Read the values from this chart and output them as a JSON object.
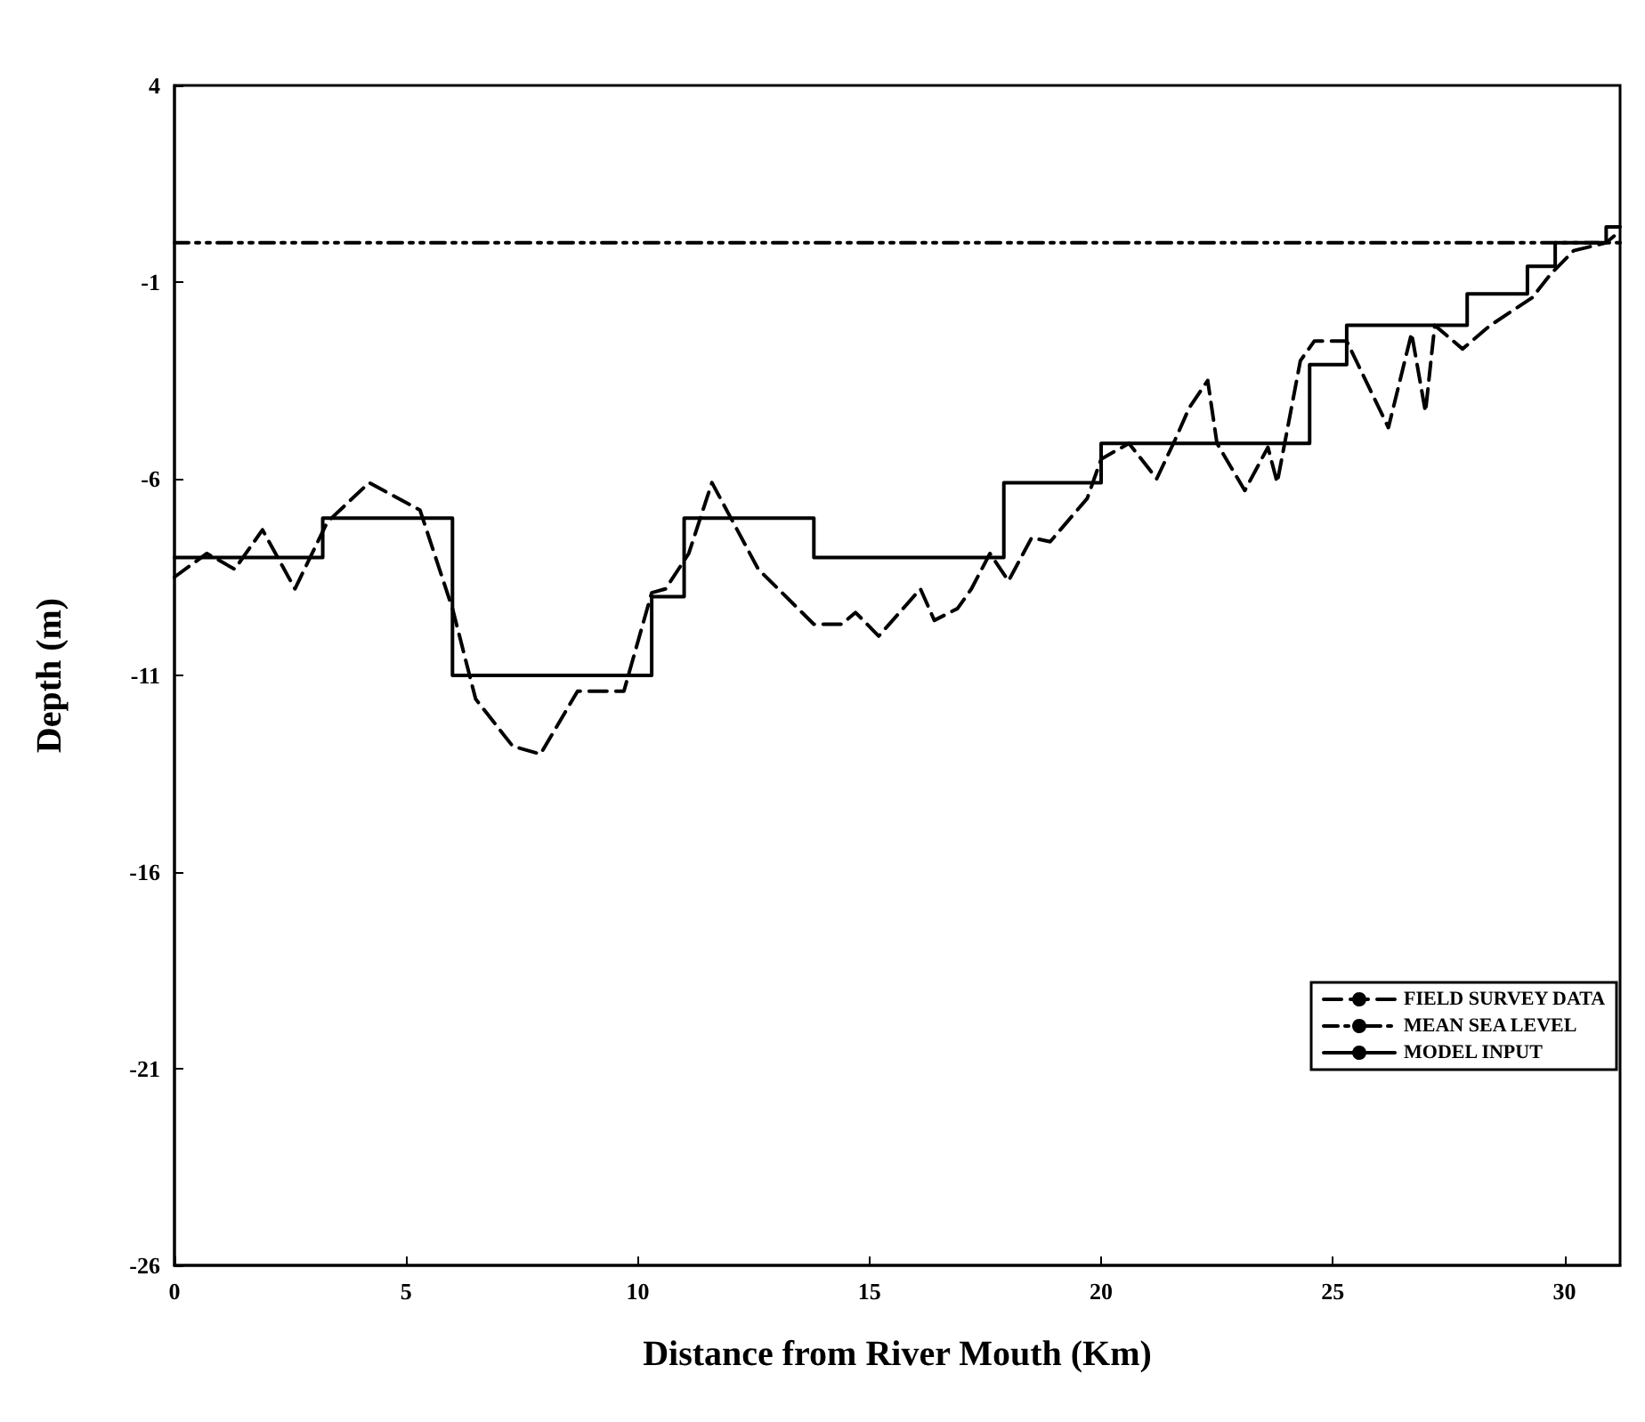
{
  "chart_data": {
    "type": "line",
    "xlabel": "Distance from River Mouth (Km)",
    "ylabel": "Depth (m)",
    "xlim": [
      0,
      31.2
    ],
    "xticks": [
      0,
      5,
      10,
      15,
      20,
      25,
      30
    ],
    "ylim": [
      -26,
      4
    ],
    "yticks": [
      -26,
      -21,
      -16,
      -11,
      -6,
      -1,
      4
    ],
    "grid": false,
    "legend": "bottom right",
    "marker": "none",
    "series": [
      {
        "name": "FIELD SURVEY DATA",
        "color": "#000000",
        "line_style": "dashed",
        "x": [
          0,
          0.7,
          1.3,
          1.9,
          2.6,
          3.3,
          4.2,
          5.3,
          6.0,
          6.5,
          7.3,
          7.9,
          8.7,
          9.7,
          10.3,
          10.6,
          11.1,
          11.6,
          12.6,
          13.8,
          14.4,
          14.7,
          15.2,
          16.1,
          16.4,
          16.9,
          17.2,
          17.6,
          18.0,
          18.5,
          18.9,
          19.7,
          20.0,
          20.6,
          21.2,
          21.6,
          21.9,
          22.3,
          22.5,
          23.1,
          23.6,
          23.8,
          24.3,
          24.6,
          25.3,
          26.2,
          26.7,
          27.0,
          27.2,
          27.8,
          28.4,
          29.3,
          29.7,
          30.2,
          30.9,
          31.2
        ],
        "values": [
          -8.5,
          -7.9,
          -8.3,
          -7.3,
          -8.8,
          -7.1,
          -6.1,
          -6.8,
          -9.3,
          -11.6,
          -12.8,
          -13.0,
          -11.4,
          -11.4,
          -8.9,
          -8.8,
          -7.9,
          -6.1,
          -8.3,
          -9.7,
          -9.7,
          -9.4,
          -10.0,
          -8.8,
          -9.6,
          -9.3,
          -8.8,
          -7.9,
          -8.6,
          -7.5,
          -7.6,
          -6.5,
          -5.5,
          -5.1,
          -6.0,
          -5.0,
          -4.2,
          -3.5,
          -5.1,
          -6.3,
          -5.2,
          -6.1,
          -3.0,
          -2.5,
          -2.5,
          -4.7,
          -2.3,
          -4.3,
          -2.1,
          -2.7,
          -2.1,
          -1.4,
          -0.8,
          -0.2,
          0.0,
          0.3
        ]
      },
      {
        "name": "MEAN SEA LEVEL",
        "color": "#000000",
        "line_style": "dotted",
        "x": [
          0,
          31.2
        ],
        "values": [
          0,
          0
        ]
      },
      {
        "name": "MODEL INPUT",
        "type": "step",
        "color": "#000000",
        "line_style": "solid",
        "x": [
          0,
          3.2,
          6.0,
          10.3,
          11.0,
          13.8,
          17.9,
          20.0,
          24.5,
          25.3,
          27.9,
          29.2,
          29.8,
          30.9,
          31.2
        ],
        "values": [
          -8.0,
          -7.0,
          -11.0,
          -9.0,
          -7.0,
          -8.0,
          -6.1,
          -5.1,
          -3.1,
          -2.1,
          -1.3,
          -0.6,
          0.0,
          0.4,
          0.4
        ]
      }
    ]
  }
}
